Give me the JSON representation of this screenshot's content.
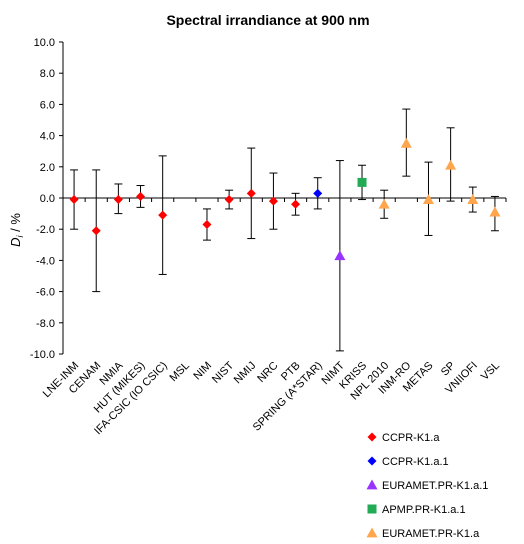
{
  "chart_data": {
    "type": "scatter",
    "title": "Spectral irrandiance at 900 nm",
    "ylabel_main": "D",
    "ylabel_sub": "i",
    "ylabel_suffix": " / %",
    "xlabel": "",
    "ylim": [
      -10,
      10
    ],
    "y_step": 2,
    "y_tick_labels": [
      "10.0",
      "8.0",
      "6.0",
      "4.0",
      "2.0",
      "0.0",
      "-2.0",
      "-4.0",
      "-6.0",
      "-8.0",
      "-10.0"
    ],
    "grid": false,
    "legend_position": "bottom-right",
    "categories": [
      "LNE-INM",
      "CENAM",
      "NMIA",
      "HUT (MIKES)",
      "IFA-CSIC (IO CSIC)",
      "MSL",
      "NIM",
      "NIST",
      "NMIJ",
      "NRC",
      "PTB",
      "SPRING (A*STAR)",
      "NIMT",
      "KRISS",
      "NPL 2010",
      "INM-RO",
      "METAS",
      "SP",
      "VNIIOFI",
      "VSL"
    ],
    "series": [
      {
        "name": "CCPR-K1.a",
        "color": "#ff0000",
        "marker": "diamond",
        "points": [
          {
            "category": "LNE-INM",
            "y": -0.1,
            "err_low": -2.0,
            "err_high": 1.8
          },
          {
            "category": "CENAM",
            "y": -2.1,
            "err_low": -6.0,
            "err_high": 1.8
          },
          {
            "category": "NMIA",
            "y": -0.1,
            "err_low": -1.0,
            "err_high": 0.9
          },
          {
            "category": "HUT (MIKES)",
            "y": 0.1,
            "err_low": -0.6,
            "err_high": 0.8
          },
          {
            "category": "IFA-CSIC (IO CSIC)",
            "y": -1.1,
            "err_low": -4.9,
            "err_high": 2.7
          },
          {
            "category": "NIM",
            "y": -1.7,
            "err_low": -2.7,
            "err_high": -0.7
          },
          {
            "category": "NIST",
            "y": -0.1,
            "err_low": -0.7,
            "err_high": 0.5
          },
          {
            "category": "NMIJ",
            "y": 0.3,
            "err_low": -2.6,
            "err_high": 3.2
          },
          {
            "category": "NRC",
            "y": -0.2,
            "err_low": -2.0,
            "err_high": 1.6
          },
          {
            "category": "PTB",
            "y": -0.4,
            "err_low": -1.1,
            "err_high": 0.3
          }
        ]
      },
      {
        "name": "CCPR-K1.a.1",
        "color": "#0000ff",
        "marker": "diamond",
        "points": [
          {
            "category": "SPRING (A*STAR)",
            "y": 0.3,
            "err_low": -0.7,
            "err_high": 1.3
          }
        ]
      },
      {
        "name": "EURAMET.PR-K1.a.1",
        "color": "#9933ff",
        "marker": "triangle",
        "points": [
          {
            "category": "NIMT",
            "y": -3.7,
            "err_low": -9.8,
            "err_high": 2.4
          }
        ]
      },
      {
        "name": "APMP.PR-K1.a.1",
        "color": "#22aa55",
        "marker": "square",
        "points": [
          {
            "category": "KRISS",
            "y": 1.0,
            "err_low": -0.1,
            "err_high": 2.1
          }
        ]
      },
      {
        "name": "EURAMET.PR-K1.a",
        "color": "#ffa64d",
        "marker": "triangle",
        "points": [
          {
            "category": "NPL 2010",
            "y": -0.4,
            "err_low": -1.3,
            "err_high": 0.5
          },
          {
            "category": "INM-RO",
            "y": 3.5,
            "err_low": 1.4,
            "err_high": 5.7
          },
          {
            "category": "METAS",
            "y": -0.1,
            "err_low": -2.4,
            "err_high": 2.3
          },
          {
            "category": "SP",
            "y": 2.1,
            "err_low": -0.2,
            "err_high": 4.5
          },
          {
            "category": "VNIIOFI",
            "y": -0.1,
            "err_low": -0.9,
            "err_high": 0.7
          },
          {
            "category": "VSL",
            "y": -0.9,
            "err_low": -2.1,
            "err_high": 0.1
          }
        ]
      }
    ]
  }
}
